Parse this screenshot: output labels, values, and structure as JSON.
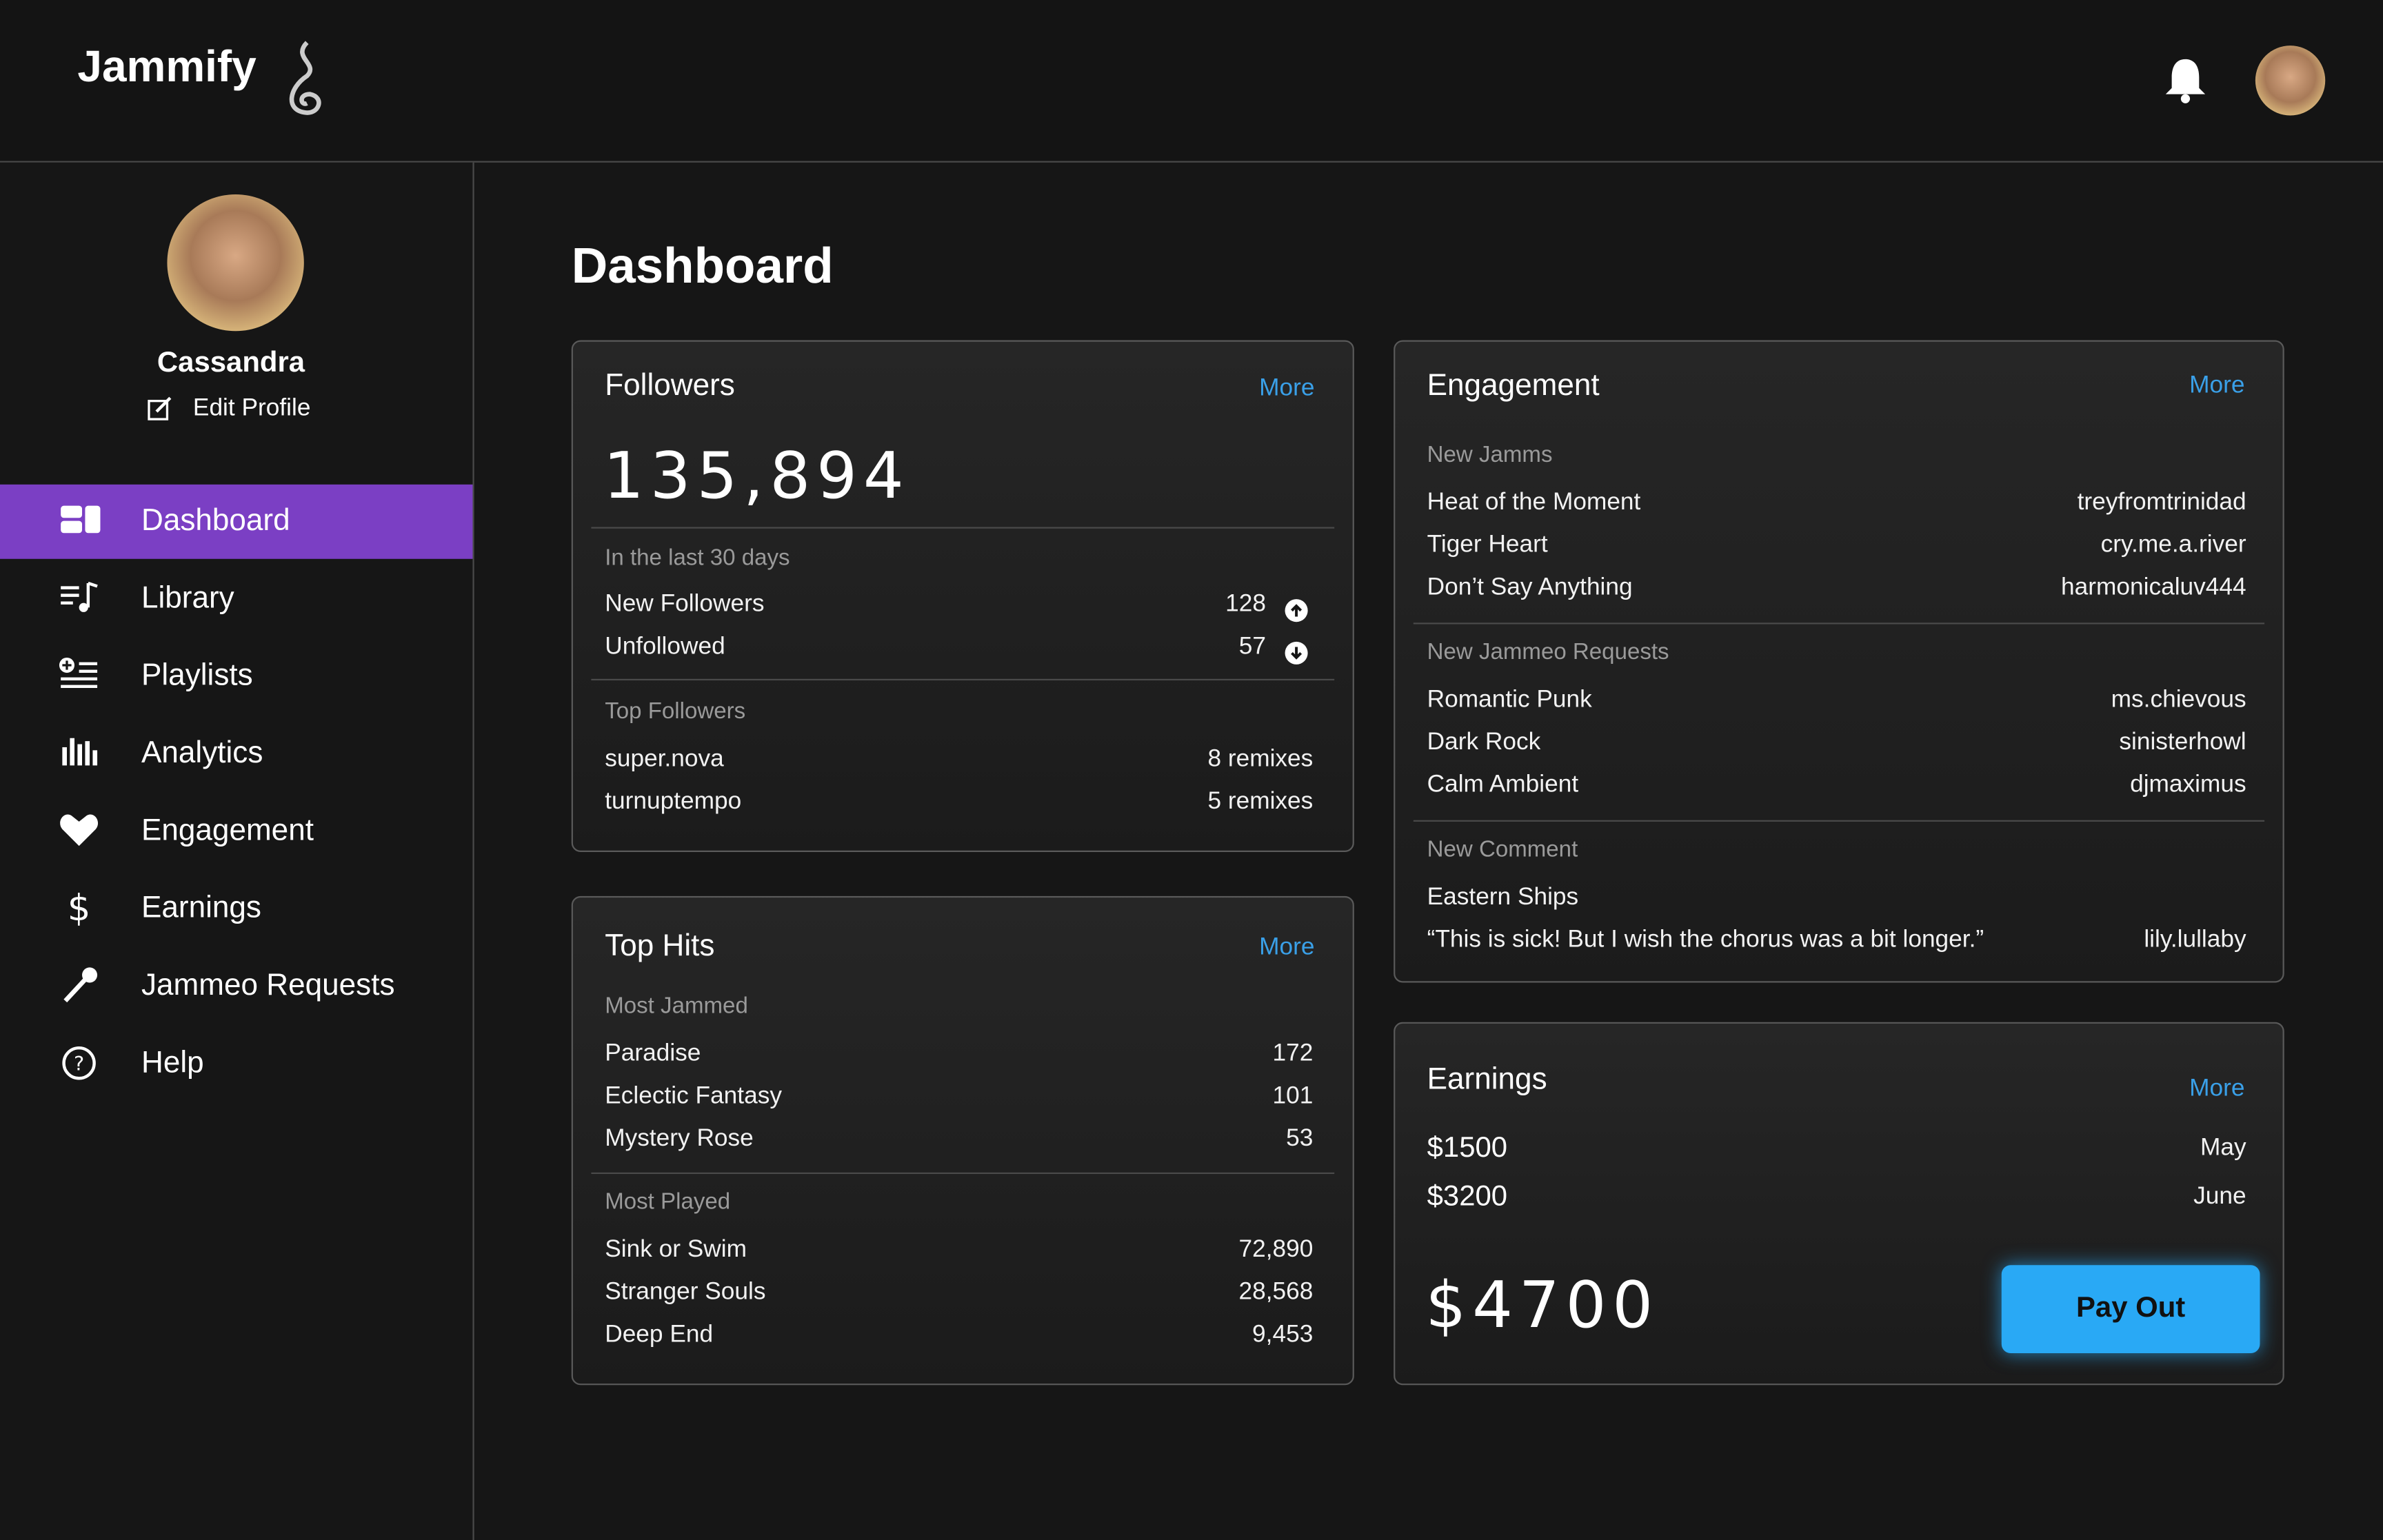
{
  "header": {
    "logo": "Jammify"
  },
  "profile": {
    "name": "Cassandra",
    "edit": "Edit Profile"
  },
  "nav": [
    "Dashboard",
    "Library",
    "Playlists",
    "Analytics",
    "Engagement",
    "Earnings",
    "Jammeo Requests",
    "Help"
  ],
  "page_title": "Dashboard",
  "followers": {
    "title": "Followers",
    "more": "More",
    "total": "135,894",
    "period": "In the last 30 days",
    "rows": [
      [
        "New Followers",
        "128"
      ],
      [
        "Unfollowed",
        "57"
      ]
    ],
    "top_label": "Top Followers",
    "top": [
      [
        "super.nova",
        "8 remixes"
      ],
      [
        "turnuptempo",
        "5 remixes"
      ]
    ]
  },
  "top_hits": {
    "title": "Top Hits",
    "more": "More",
    "sections": [
      {
        "label": "Most Jammed",
        "rows": [
          [
            "Paradise",
            "172"
          ],
          [
            "Eclectic Fantasy",
            "101"
          ],
          [
            "Mystery Rose",
            "53"
          ]
        ]
      },
      {
        "label": "Most Played",
        "rows": [
          [
            "Sink or Swim",
            "72,890"
          ],
          [
            "Stranger Souls",
            "28,568"
          ],
          [
            "Deep End",
            "9,453"
          ]
        ]
      }
    ]
  },
  "engagement": {
    "title": "Engagement",
    "more": "More",
    "sections": [
      {
        "label": "New Jamms",
        "rows": [
          [
            "Heat of the Moment",
            "treyfromtrinidad"
          ],
          [
            "Tiger Heart",
            "cry.me.a.river"
          ],
          [
            "Don’t Say Anything",
            "harmonicaluv444"
          ]
        ]
      },
      {
        "label": "New Jammeo Requests",
        "rows": [
          [
            "Romantic Punk",
            "ms.chievous"
          ],
          [
            "Dark Rock",
            "sinisterhowl"
          ],
          [
            "Calm Ambient",
            "djmaximus"
          ]
        ]
      },
      {
        "label": "New Comment",
        "rows": [
          [
            "Eastern Ships"
          ],
          [
            "“This is sick! But I wish the chorus was a bit longer.”",
            "lily.lullaby"
          ]
        ]
      }
    ]
  },
  "earnings": {
    "title": "Earnings",
    "more": "More",
    "rows": [
      [
        "$1500",
        "May"
      ],
      [
        "$3200",
        "June"
      ]
    ],
    "total": "$4700",
    "button": "Pay Out"
  }
}
